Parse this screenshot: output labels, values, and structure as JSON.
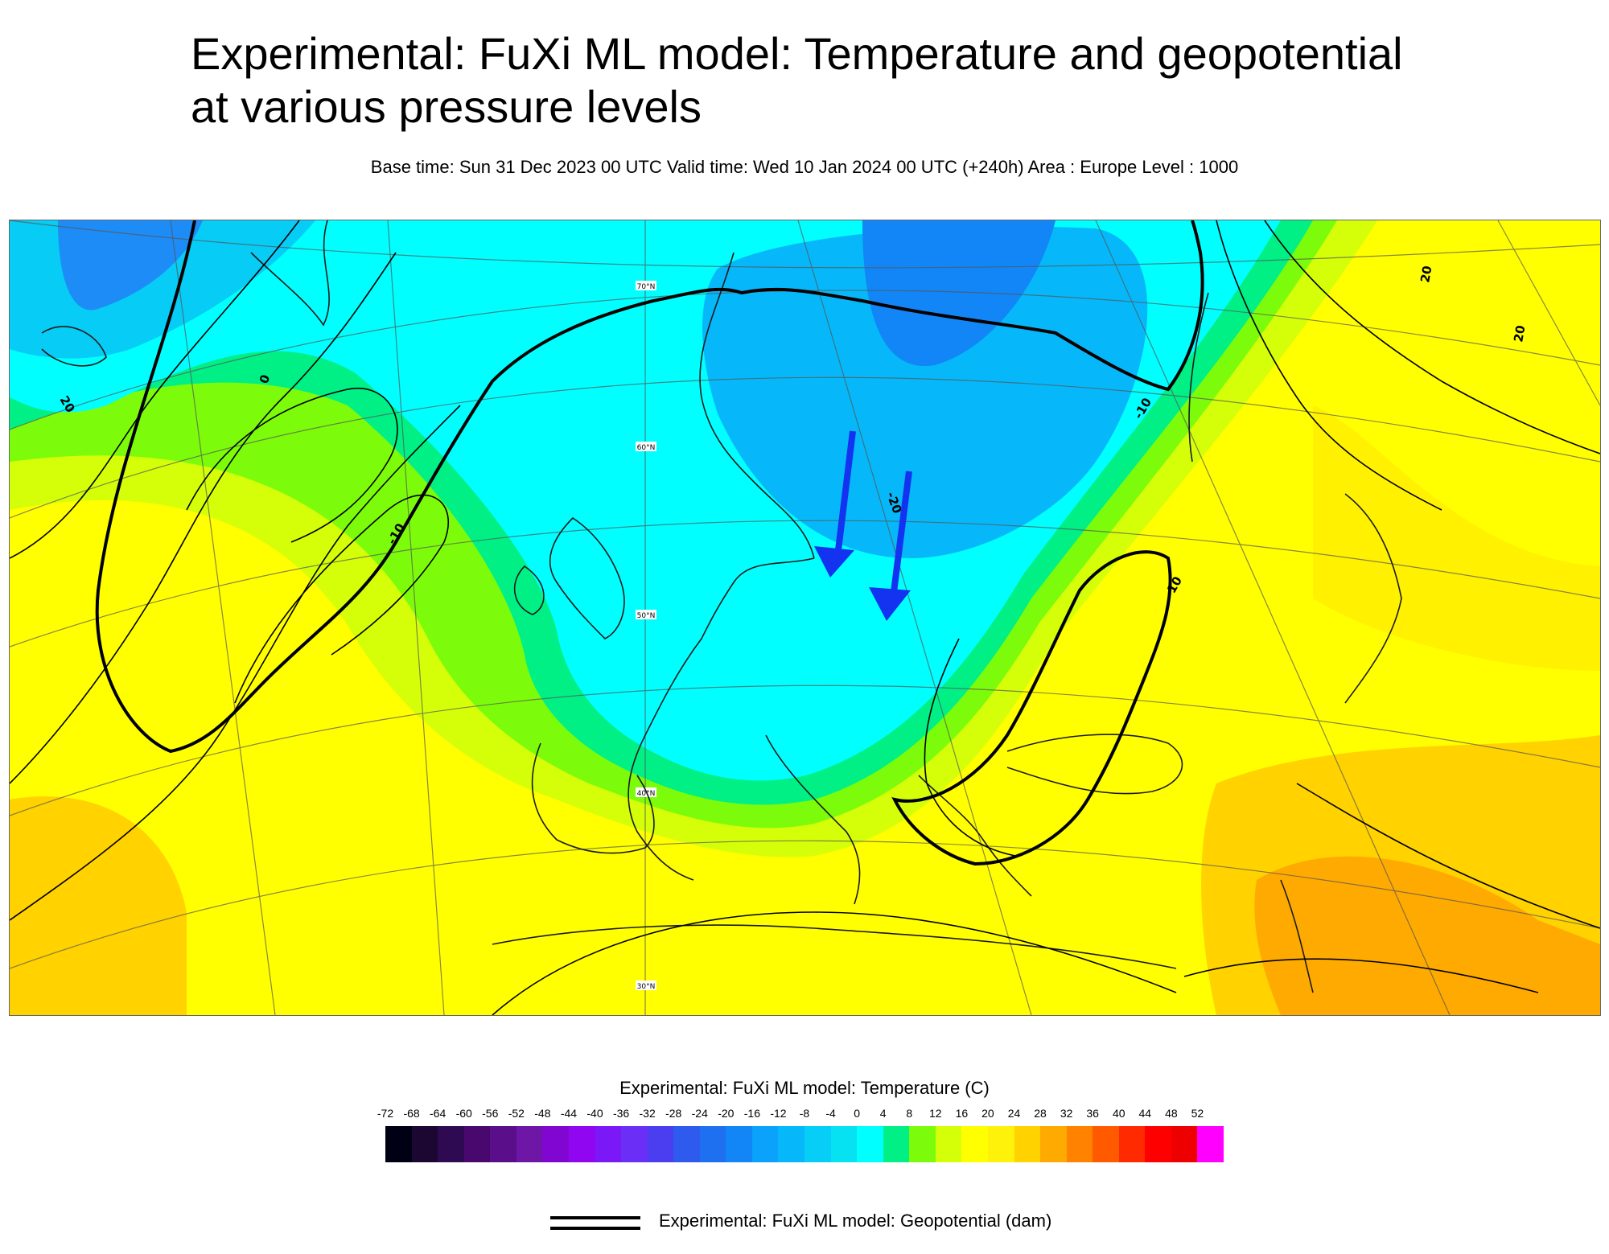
{
  "header": {
    "title": "Experimental: FuXi ML model: Temperature and geopotential at various pressure levels",
    "subtitle": "Base time: Sun 31 Dec 2023 00 UTC Valid time: Wed 10 Jan 2024 00 UTC (+240h) Area : Europe Level : 1000"
  },
  "map": {
    "latitude_labels": [
      "70°N",
      "60°N",
      "50°N",
      "40°N",
      "30°N"
    ],
    "isoline_labels": [
      "20",
      "0",
      "-10",
      "-20",
      "-10",
      "-10",
      "20",
      "20"
    ],
    "annotation": "two blue arrows pointing south-southwest over central Europe"
  },
  "temperature_legend": {
    "title": "Experimental: FuXi ML model: Temperature (C)",
    "ticks": [
      "-72",
      "-68",
      "-64",
      "-60",
      "-56",
      "-52",
      "-48",
      "-44",
      "-40",
      "-36",
      "-32",
      "-28",
      "-24",
      "-20",
      "-16",
      "-12",
      "-8",
      "-4",
      "0",
      "4",
      "8",
      "12",
      "16",
      "20",
      "24",
      "28",
      "32",
      "36",
      "40",
      "44",
      "48",
      "52"
    ],
    "colors": [
      "#000014",
      "#1c0632",
      "#2e0a52",
      "#48086e",
      "#5a0e8a",
      "#6e16a6",
      "#8206d2",
      "#9006f0",
      "#7a18f8",
      "#6a2ef6",
      "#4a3ef0",
      "#2e5aee",
      "#1e70f0",
      "#1286f6",
      "#0aa2fa",
      "#06b8fa",
      "#06cef6",
      "#06e2f2",
      "#00ffff",
      "#00f086",
      "#7cfc0a",
      "#d4ff08",
      "#ffff00",
      "#fff20a",
      "#ffd200",
      "#ffaa00",
      "#ff8200",
      "#ff5a00",
      "#ff2a00",
      "#ff0000",
      "#ee0000",
      "#ff00ff"
    ]
  },
  "geopotential_legend": {
    "title": "Experimental: FuXi ML model: Geopotential (dam)"
  },
  "colors": {
    "arrow": "#1433f0",
    "contour": "#000000",
    "grid": "#555555"
  }
}
